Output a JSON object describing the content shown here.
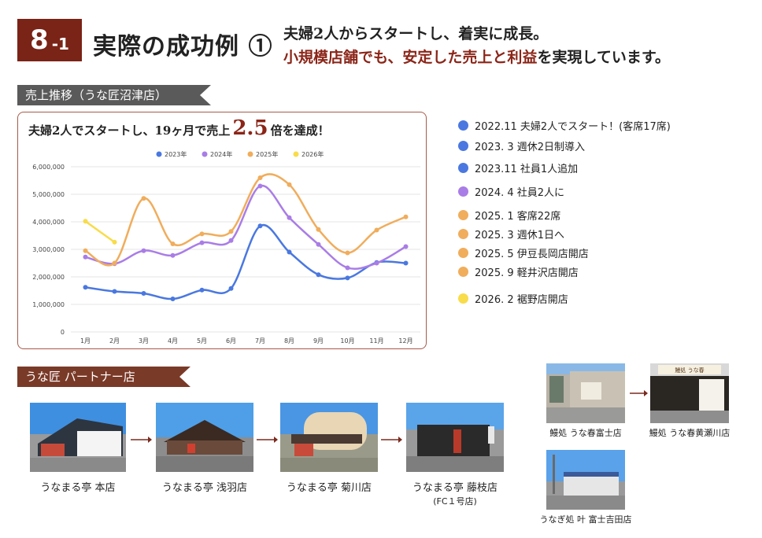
{
  "header": {
    "badge_num": "8",
    "badge_sub": "-1",
    "title": "実際の成功例 ①",
    "lead_line1": "夫婦2人からスタートし、着実に成長。",
    "lead_line2_red": "小規模店舗でも、安定した売上と利益",
    "lead_line2_rest": "を実現しています。"
  },
  "sales_section": {
    "ribbon": "売上推移（うな匠沼津店）",
    "headline_pre": "夫婦2人でスタートし、19ヶ月で売上",
    "headline_big": "2.5",
    "headline_post": "倍を達成！"
  },
  "chart_data": {
    "type": "line",
    "categories": [
      "1月",
      "2月",
      "3月",
      "4月",
      "5月",
      "6月",
      "7月",
      "8月",
      "9月",
      "10月",
      "11月",
      "12月"
    ],
    "y_ticks": [
      "0",
      "1,000,000",
      "2,000,000",
      "3,000,000",
      "4,000,000",
      "5,000,000",
      "6,000,000"
    ],
    "ylim": [
      0,
      6000000
    ],
    "grid": true,
    "legend_position": "top",
    "series": [
      {
        "name": "2023年",
        "color": "#4a78e0",
        "values": [
          1620000,
          1470000,
          1400000,
          1200000,
          1520000,
          1580000,
          3850000,
          2900000,
          2080000,
          1960000,
          2520000,
          2500000
        ]
      },
      {
        "name": "2024年",
        "color": "#a97de6",
        "values": [
          2720000,
          2480000,
          2950000,
          2780000,
          3240000,
          3320000,
          5300000,
          4150000,
          3180000,
          2330000,
          2500000,
          3100000
        ]
      },
      {
        "name": "2025年",
        "color": "#f0ad5c",
        "values": [
          2950000,
          2500000,
          4850000,
          3200000,
          3560000,
          3650000,
          5600000,
          5350000,
          3720000,
          2870000,
          3700000,
          4180000
        ]
      },
      {
        "name": "2026年",
        "color": "#f8dc4a",
        "values": [
          4020000,
          3260000,
          null,
          null,
          null,
          null,
          null,
          null,
          null,
          null,
          null,
          null
        ]
      }
    ]
  },
  "timeline": [
    {
      "text": "2022.11  夫婦2人でスタート！(客席17席)",
      "color": "#4a78e0"
    },
    {
      "text": "2023.  3  週休2日制導入",
      "color": "#4a78e0"
    },
    {
      "text": "2023.11  社員1人追加",
      "color": "#4a78e0"
    },
    {
      "text": "2024.  4  社員2人に",
      "color": "#a97de6"
    },
    {
      "text": "2025.  1  客席22席",
      "color": "#f0ad5c"
    },
    {
      "text": "2025.  3  週休1日へ",
      "color": "#f0ad5c"
    },
    {
      "text": "2025.  5  伊豆長岡店開店",
      "color": "#f0ad5c"
    },
    {
      "text": "2025.  9  軽井沢店開店",
      "color": "#f0ad5c"
    },
    {
      "text": "2026.  2  裾野店開店",
      "color": "#f8dc4a"
    }
  ],
  "partner_section": {
    "ribbon": "うな匠 パートナー店",
    "stores": [
      {
        "name": "うなまる亭 本店"
      },
      {
        "name": "うなまる亭 浅羽店"
      },
      {
        "name": "うなまる亭 菊川店"
      },
      {
        "name": "うなまる亭 藤枝店",
        "note": "(FC１号店)"
      }
    ],
    "other_stores": [
      {
        "name": "鰻処 うな春富士店"
      },
      {
        "name": "鰻処 うな春黄瀬川店"
      },
      {
        "name": "うなぎ処 叶 富士吉田店"
      }
    ],
    "storefront_sign": "鰻処 うな春"
  }
}
